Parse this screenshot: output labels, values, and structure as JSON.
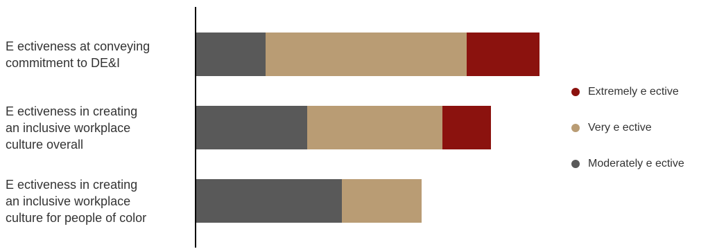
{
  "chart_data": {
    "type": "bar",
    "orientation": "horizontal",
    "stacked": true,
    "categories": [
      "E ectiveness at conveying\ncommitment to DE&I",
      "E ectiveness in creating\nan inclusive workplace\nculture overall",
      "E ectiveness in creating\nan inclusive workplace\nculture for people of color"
    ],
    "series": [
      {
        "name": "Moderately e ective",
        "color": "#595959",
        "values": [
          20,
          32,
          42
        ]
      },
      {
        "name": "Very e ective",
        "color": "#B99C74",
        "values": [
          58,
          39,
          23
        ]
      },
      {
        "name": "Extremely e ective",
        "color": "#8B120E",
        "values": [
          21,
          14,
          0
        ]
      }
    ],
    "xlim": [
      0,
      100
    ],
    "grid": false,
    "legend_position": "right",
    "legend_order": [
      "Extremely e ective",
      "Very e ective",
      "Moderately e ective"
    ]
  }
}
